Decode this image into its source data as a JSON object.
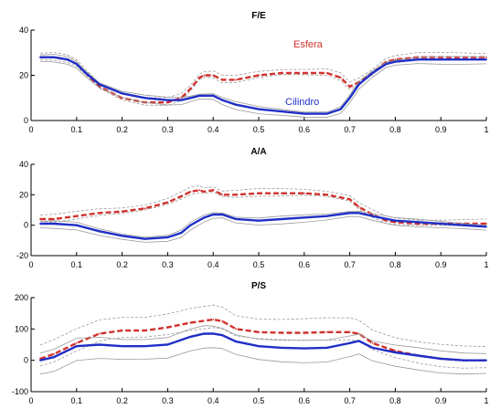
{
  "colors": {
    "esfera": "#d0312d",
    "cilindro": "#1f2fc6",
    "band": "#9a9a9a",
    "axis": "#000000"
  },
  "chart_data": [
    {
      "type": "line",
      "title": "F/E",
      "xlim": [
        0,
        1
      ],
      "ylim": [
        0,
        40
      ],
      "xticks": [
        0,
        0.1,
        0.2,
        0.3,
        0.4,
        0.5,
        0.6,
        0.7,
        0.8,
        0.9,
        1
      ],
      "xtick_labels": [
        "0",
        "0.1",
        "0.2",
        "0.3",
        "0.4",
        "0.5",
        "0.6",
        "0.7",
        "0.8",
        "0.9",
        "1"
      ],
      "yticks": [
        0,
        20,
        40
      ],
      "ytick_labels": [
        "0",
        "20",
        "40"
      ],
      "annotations": [
        {
          "text": "Esfera",
          "series": "esfera"
        },
        {
          "text": "Cilindro",
          "series": "cilindro"
        }
      ],
      "series": [
        {
          "key": "esfera",
          "name": "Esfera",
          "x": [
            0.02,
            0.05,
            0.08,
            0.1,
            0.12,
            0.15,
            0.2,
            0.25,
            0.3,
            0.33,
            0.35,
            0.37,
            0.38,
            0.4,
            0.42,
            0.45,
            0.5,
            0.55,
            0.6,
            0.65,
            0.68,
            0.7,
            0.72,
            0.75,
            0.78,
            0.8,
            0.85,
            0.9,
            0.95,
            1.0
          ],
          "y": [
            28,
            28,
            27,
            25,
            21,
            15,
            10,
            8,
            8,
            10,
            14,
            19,
            20,
            20,
            18,
            18,
            20,
            21,
            21,
            21,
            19,
            15,
            17,
            21,
            26,
            27,
            28,
            28,
            28,
            28
          ]
        },
        {
          "key": "cilindro",
          "name": "Cilindro",
          "x": [
            0.02,
            0.05,
            0.08,
            0.1,
            0.12,
            0.15,
            0.2,
            0.25,
            0.3,
            0.33,
            0.35,
            0.37,
            0.4,
            0.42,
            0.45,
            0.5,
            0.55,
            0.6,
            0.65,
            0.68,
            0.7,
            0.72,
            0.75,
            0.78,
            0.8,
            0.85,
            0.9,
            0.95,
            1.0
          ],
          "y": [
            28,
            28,
            27,
            25,
            21,
            16,
            12,
            10,
            9,
            9,
            10,
            11,
            11,
            9,
            7,
            5,
            4,
            3,
            3,
            5,
            10,
            16,
            21,
            25,
            26,
            27,
            27,
            27,
            27
          ]
        }
      ]
    },
    {
      "type": "line",
      "title": "A/A",
      "xlim": [
        0,
        1
      ],
      "ylim": [
        -20,
        40
      ],
      "xticks": [
        0,
        0.1,
        0.2,
        0.3,
        0.4,
        0.5,
        0.6,
        0.7,
        0.8,
        0.9,
        1
      ],
      "xtick_labels": [
        "0",
        "0.1",
        "0.2",
        "0.3",
        "0.4",
        "0.5",
        "0.6",
        "0.7",
        "0.8",
        "0.9",
        "1"
      ],
      "yticks": [
        -20,
        0,
        20,
        40
      ],
      "ytick_labels": [
        "-20",
        "0",
        "20",
        "40"
      ],
      "annotations": [],
      "series": [
        {
          "key": "esfera",
          "name": "Esfera",
          "x": [
            0.02,
            0.05,
            0.1,
            0.15,
            0.2,
            0.25,
            0.3,
            0.33,
            0.35,
            0.37,
            0.38,
            0.4,
            0.42,
            0.45,
            0.5,
            0.55,
            0.6,
            0.65,
            0.7,
            0.72,
            0.75,
            0.78,
            0.8,
            0.85,
            0.9,
            0.95,
            1.0
          ],
          "y": [
            4,
            4,
            6,
            8,
            9,
            11,
            15,
            19,
            22,
            23,
            22,
            23,
            20,
            20,
            21,
            21,
            21,
            20,
            17,
            12,
            7,
            3,
            2,
            1,
            1,
            1,
            1
          ]
        },
        {
          "key": "cilindro",
          "name": "Cilindro",
          "x": [
            0.02,
            0.05,
            0.1,
            0.15,
            0.2,
            0.25,
            0.3,
            0.33,
            0.35,
            0.38,
            0.4,
            0.42,
            0.45,
            0.5,
            0.55,
            0.6,
            0.65,
            0.7,
            0.72,
            0.75,
            0.8,
            0.85,
            0.9,
            0.95,
            1.0
          ],
          "y": [
            1,
            1,
            0,
            -4,
            -7,
            -9,
            -8,
            -5,
            0,
            5,
            7,
            7,
            4,
            3,
            4,
            5,
            6,
            8,
            8,
            6,
            3,
            2,
            1,
            0,
            -1
          ]
        }
      ]
    },
    {
      "type": "line",
      "title": "P/S",
      "xlim": [
        0,
        1
      ],
      "ylim": [
        -100,
        200
      ],
      "xticks": [
        0,
        0.1,
        0.2,
        0.3,
        0.4,
        0.5,
        0.6,
        0.7,
        0.8,
        0.9,
        1
      ],
      "xtick_labels": [
        "0",
        "0.1",
        "0.2",
        "0.3",
        "0.4",
        "0.5",
        "0.6",
        "0.7",
        "0.8",
        "0.9",
        "1"
      ],
      "yticks": [
        -100,
        0,
        100,
        200
      ],
      "ytick_labels": [
        "-100",
        "0",
        "100",
        "200"
      ],
      "annotations": [],
      "series": [
        {
          "key": "esfera",
          "name": "Esfera",
          "x": [
            0.02,
            0.05,
            0.1,
            0.15,
            0.2,
            0.25,
            0.3,
            0.35,
            0.4,
            0.42,
            0.45,
            0.5,
            0.55,
            0.6,
            0.65,
            0.7,
            0.72,
            0.75,
            0.8,
            0.85,
            0.9,
            0.95,
            1.0
          ],
          "y": [
            5,
            20,
            55,
            85,
            95,
            95,
            105,
            120,
            130,
            125,
            100,
            90,
            88,
            88,
            90,
            90,
            85,
            55,
            30,
            15,
            5,
            0,
            0
          ]
        },
        {
          "key": "cilindro",
          "name": "Cilindro",
          "x": [
            0.02,
            0.05,
            0.1,
            0.15,
            0.2,
            0.25,
            0.3,
            0.35,
            0.38,
            0.4,
            0.42,
            0.45,
            0.5,
            0.55,
            0.6,
            0.65,
            0.7,
            0.72,
            0.75,
            0.8,
            0.85,
            0.9,
            0.95,
            1.0
          ],
          "y": [
            0,
            10,
            45,
            50,
            45,
            45,
            50,
            75,
            85,
            85,
            80,
            60,
            45,
            40,
            38,
            40,
            55,
            62,
            40,
            25,
            15,
            5,
            0,
            0
          ]
        }
      ]
    }
  ]
}
